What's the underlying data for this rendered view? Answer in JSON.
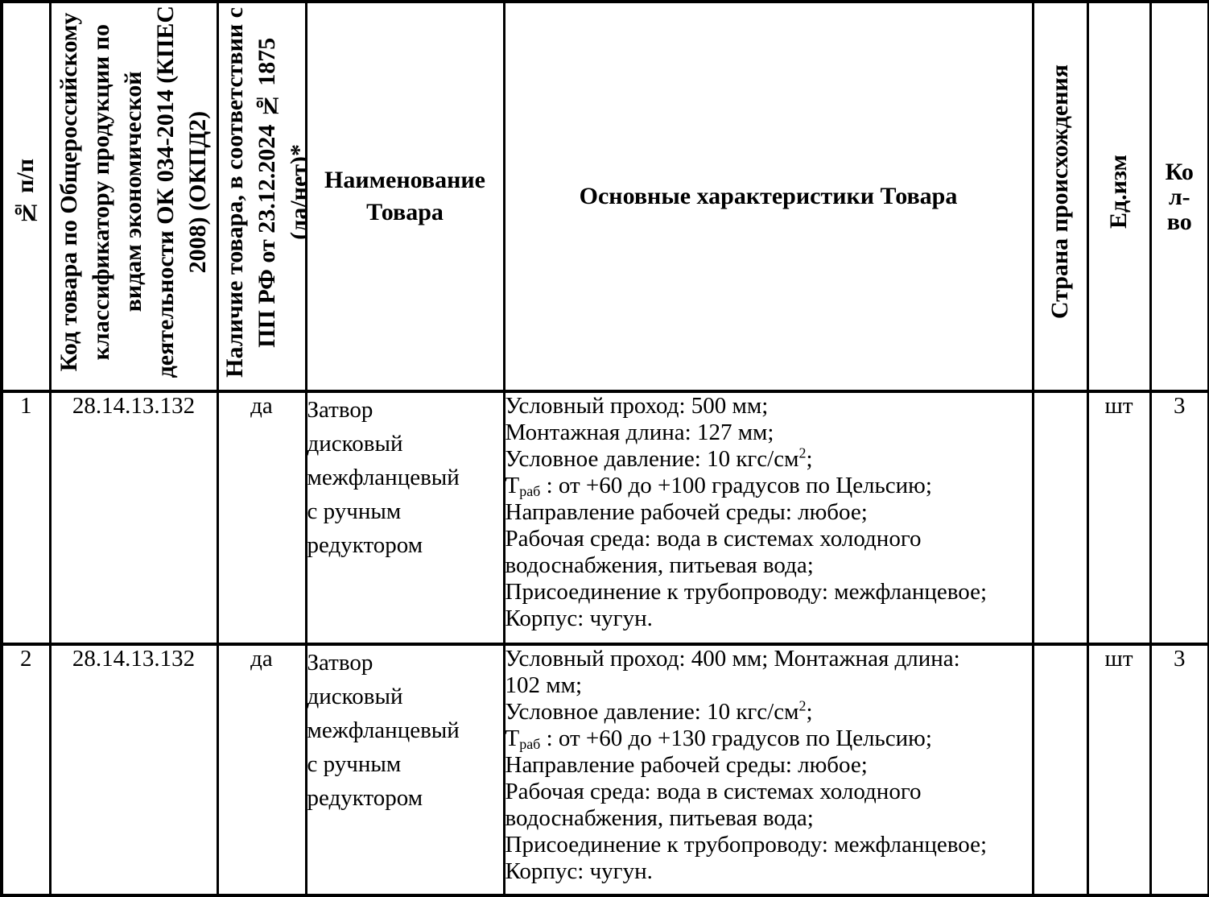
{
  "table": {
    "headers": {
      "num": "№ п/п",
      "code": "Код товара по Общероссийскому\nклассификатору продукции по\nвидам экономической\nдеятельности ОК 034-2014 (КПЕС\n2008) (ОКПД2)",
      "availability": "Наличие товара, в соответствии с\nПП РФ от 23.12.2024 № 1875\n(да/нет)*",
      "name": "Наименование\nТовара",
      "characteristics": "Основные характеристики Товара",
      "country": "Страна происхождения",
      "unit": "Ед.изм",
      "qty": "Ко\nл-\nво"
    },
    "rows": [
      {
        "num": "1",
        "code": "28.14.13.132",
        "availability": "да",
        "name": "Затвор\nдисковый\nмежфланцевый\nс ручным\nредуктором",
        "characteristics": [
          [
            [
              "Условный проход: 500 мм;",
              "n"
            ]
          ],
          [
            [
              "Монтажная длина: 127 мм;",
              "n"
            ]
          ],
          [
            [
              "Условное давление: 10 кгс/см",
              "n"
            ],
            [
              "2",
              "sup"
            ],
            [
              ";",
              "n"
            ]
          ],
          [
            [
              "Т",
              "n"
            ],
            [
              "раб",
              "sub"
            ],
            [
              " : от +60 до +100 градусов по Цельсию;",
              "n"
            ]
          ],
          [
            [
              "Направление рабочей среды: любое;",
              "n"
            ]
          ],
          [
            [
              "Рабочая среда: вода в системах холодного",
              "n"
            ]
          ],
          [
            [
              "водоснабжения, питьевая вода;",
              "n"
            ]
          ],
          [
            [
              "Присоединение к трубопроводу: межфланцевое;",
              "n"
            ]
          ],
          [
            [
              "Корпус: чугун.",
              "n"
            ]
          ]
        ],
        "country": "",
        "unit": "шт",
        "qty": "3"
      },
      {
        "num": "2",
        "code": "28.14.13.132",
        "availability": "да",
        "name": "Затвор\nдисковый\nмежфланцевый\nс ручным\nредуктором",
        "characteristics": [
          [
            [
              "Условный проход: 400 мм; Монтажная длина:",
              "n"
            ]
          ],
          [
            [
              "102 мм;",
              "n"
            ]
          ],
          [
            [
              "Условное давление: 10 кгс/см",
              "n"
            ],
            [
              "2",
              "sup"
            ],
            [
              ";",
              "n"
            ]
          ],
          [
            [
              "Т",
              "n"
            ],
            [
              "раб",
              "sub"
            ],
            [
              " : от +60 до +130 градусов по Цельсию;",
              "n"
            ]
          ],
          [
            [
              "Направление рабочей среды: любое;",
              "n"
            ]
          ],
          [
            [
              "Рабочая среда: вода в системах холодного",
              "n"
            ]
          ],
          [
            [
              "водоснабжения, питьевая вода;",
              "n"
            ]
          ],
          [
            [
              "Присоединение к трубопроводу: межфланцевое;",
              "n"
            ]
          ],
          [
            [
              "Корпус: чугун.",
              "n"
            ]
          ]
        ],
        "country": "",
        "unit": "шт",
        "qty": "3"
      }
    ]
  }
}
